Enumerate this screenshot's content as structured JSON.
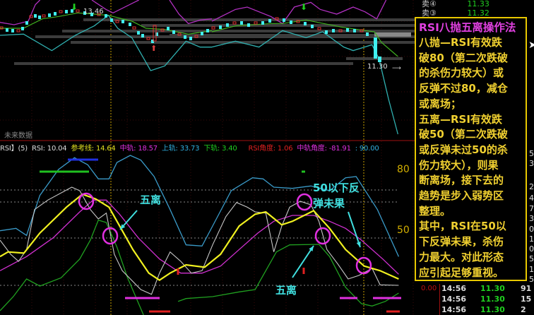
{
  "order_book_top": [
    {
      "label": "卖④",
      "price": "11.33"
    },
    {
      "label": "卖③",
      "price": "11.32"
    }
  ],
  "price_chart": {
    "high_label": "13.46",
    "last_label": "11.30",
    "future_data_label": "未来数据"
  },
  "rsi_header": {
    "name": "RSI】(5)",
    "rsi": "RSI: 10.04",
    "ref_line": "参考线: 14.64",
    "mid_rail": "中轨: 18.57",
    "upper_rail": "上轨: 33.73",
    "lower_rail": "下轨: 3.40",
    "rsi_angle": "RSI角度: 1.06",
    "mid_angle": "中轨角度: -81.91",
    "extra": ": 90.00"
  },
  "rsi_axis": {
    "level_80": "80",
    "level_50": "50"
  },
  "annotations": {
    "wuli_1": "五离",
    "wuli_2": "五离",
    "rebound_fail_line1": "50以下反",
    "rebound_fail_line2": "弹未果"
  },
  "note": {
    "title": "RSI八抛五离操作法",
    "body": "八抛—RSI有效跌\n破80（第二次跌破\n的杀伤力较大）或\n反弹不过80，减仓\n或离场；\n五离—RSI有效跌\n破50（第二次跌破\n或反弹未过50的杀\n伤力较大），则果\n断离场，接下去的\n趋势是步入弱势区\n整理。\n其中，RSI在50以\n下反弹未果，杀伤\n力最大。对此形态\n应引起足够重视。"
  },
  "right_edge_numbers": [
    "5",
    "3",
    "25",
    "4",
    "7",
    "3",
    "0",
    "1",
    "0",
    "5",
    "1",
    "5"
  ],
  "ticks": {
    "change": "0.00",
    "rows": [
      {
        "time": "14:56",
        "price": "11.30",
        "volume": "91"
      },
      {
        "time": "14:56",
        "price": "11.30",
        "volume": "15"
      },
      {
        "time": "14:56",
        "price": "11.30",
        "volume": "2"
      }
    ]
  },
  "colors": {
    "background": "#000000",
    "rsi_line": "#f0f020",
    "mid_rail": "#d030d0",
    "upper_rail": "#3a9ac8",
    "lower_rail": "#20a020",
    "note_border": "#e8c800",
    "annotation": "#40e0e0"
  }
}
